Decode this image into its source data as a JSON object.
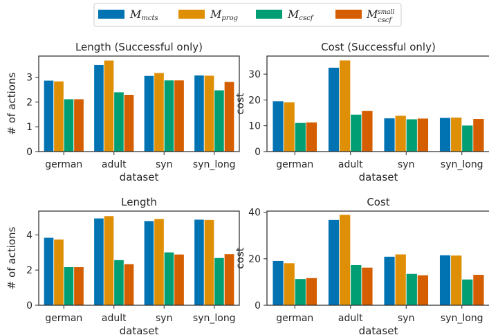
{
  "legend": [
    {
      "main": "M",
      "sub": "mcts",
      "sup": "",
      "color": "#0173b2"
    },
    {
      "main": "M",
      "sub": "prog",
      "sup": "",
      "color": "#de8f05"
    },
    {
      "main": "M",
      "sub": "cscf",
      "sup": "",
      "color": "#029e73"
    },
    {
      "main": "M",
      "sub": "cscf",
      "sup": "small",
      "color": "#d55e00"
    }
  ],
  "chart_data": [
    {
      "type": "bar",
      "title": "Length (Successful only)",
      "xlabel": "dataset",
      "ylabel": "# of actions",
      "categories": [
        "german",
        "adult",
        "syn",
        "syn_long"
      ],
      "ylim": [
        0,
        3.85
      ],
      "yticks": [
        0,
        1,
        2,
        3
      ],
      "series": [
        {
          "name": "mcts",
          "values": [
            2.87,
            3.5,
            3.06,
            3.08
          ]
        },
        {
          "name": "prog",
          "values": [
            2.84,
            3.68,
            3.18,
            3.07
          ]
        },
        {
          "name": "cscf",
          "values": [
            2.12,
            2.4,
            2.88,
            2.48
          ]
        },
        {
          "name": "cscf small",
          "values": [
            2.12,
            2.3,
            2.88,
            2.82
          ]
        }
      ]
    },
    {
      "type": "bar",
      "title": "Cost (Successful only)",
      "xlabel": "dataset",
      "ylabel": "cost",
      "categories": [
        "german",
        "adult",
        "syn",
        "syn_long"
      ],
      "ylim": [
        0,
        37
      ],
      "yticks": [
        0,
        10,
        20,
        30
      ],
      "series": [
        {
          "name": "mcts",
          "values": [
            19.6,
            32.6,
            13.0,
            13.2
          ]
        },
        {
          "name": "prog",
          "values": [
            19.2,
            35.4,
            14.0,
            13.3
          ]
        },
        {
          "name": "cscf",
          "values": [
            11.2,
            14.4,
            12.6,
            10.2
          ]
        },
        {
          "name": "cscf small",
          "values": [
            11.4,
            15.9,
            12.9,
            12.7
          ]
        }
      ]
    },
    {
      "type": "bar",
      "title": "Length",
      "xlabel": "dataset",
      "ylabel": "# of actions",
      "categories": [
        "german",
        "adult",
        "syn",
        "syn_long"
      ],
      "ylim": [
        0,
        5.35
      ],
      "yticks": [
        0,
        2,
        4
      ],
      "series": [
        {
          "name": "mcts",
          "values": [
            3.85,
            4.95,
            4.8,
            4.88
          ]
        },
        {
          "name": "prog",
          "values": [
            3.75,
            5.08,
            4.92,
            4.86
          ]
        },
        {
          "name": "cscf",
          "values": [
            2.18,
            2.58,
            3.02,
            2.7
          ]
        },
        {
          "name": "cscf small",
          "values": [
            2.18,
            2.35,
            2.9,
            2.92
          ]
        }
      ]
    },
    {
      "type": "bar",
      "title": "Cost",
      "xlabel": "dataset",
      "ylabel": "cost",
      "categories": [
        "german",
        "adult",
        "syn",
        "syn_long"
      ],
      "ylim": [
        0,
        40.5
      ],
      "yticks": [
        0,
        20,
        40
      ],
      "series": [
        {
          "name": "mcts",
          "values": [
            19.2,
            36.8,
            21.0,
            21.6
          ]
        },
        {
          "name": "prog",
          "values": [
            18.2,
            39.0,
            22.0,
            21.5
          ]
        },
        {
          "name": "cscf",
          "values": [
            11.4,
            17.4,
            13.6,
            11.2
          ]
        },
        {
          "name": "cscf small",
          "values": [
            11.8,
            16.3,
            13.0,
            13.2
          ]
        }
      ]
    }
  ]
}
